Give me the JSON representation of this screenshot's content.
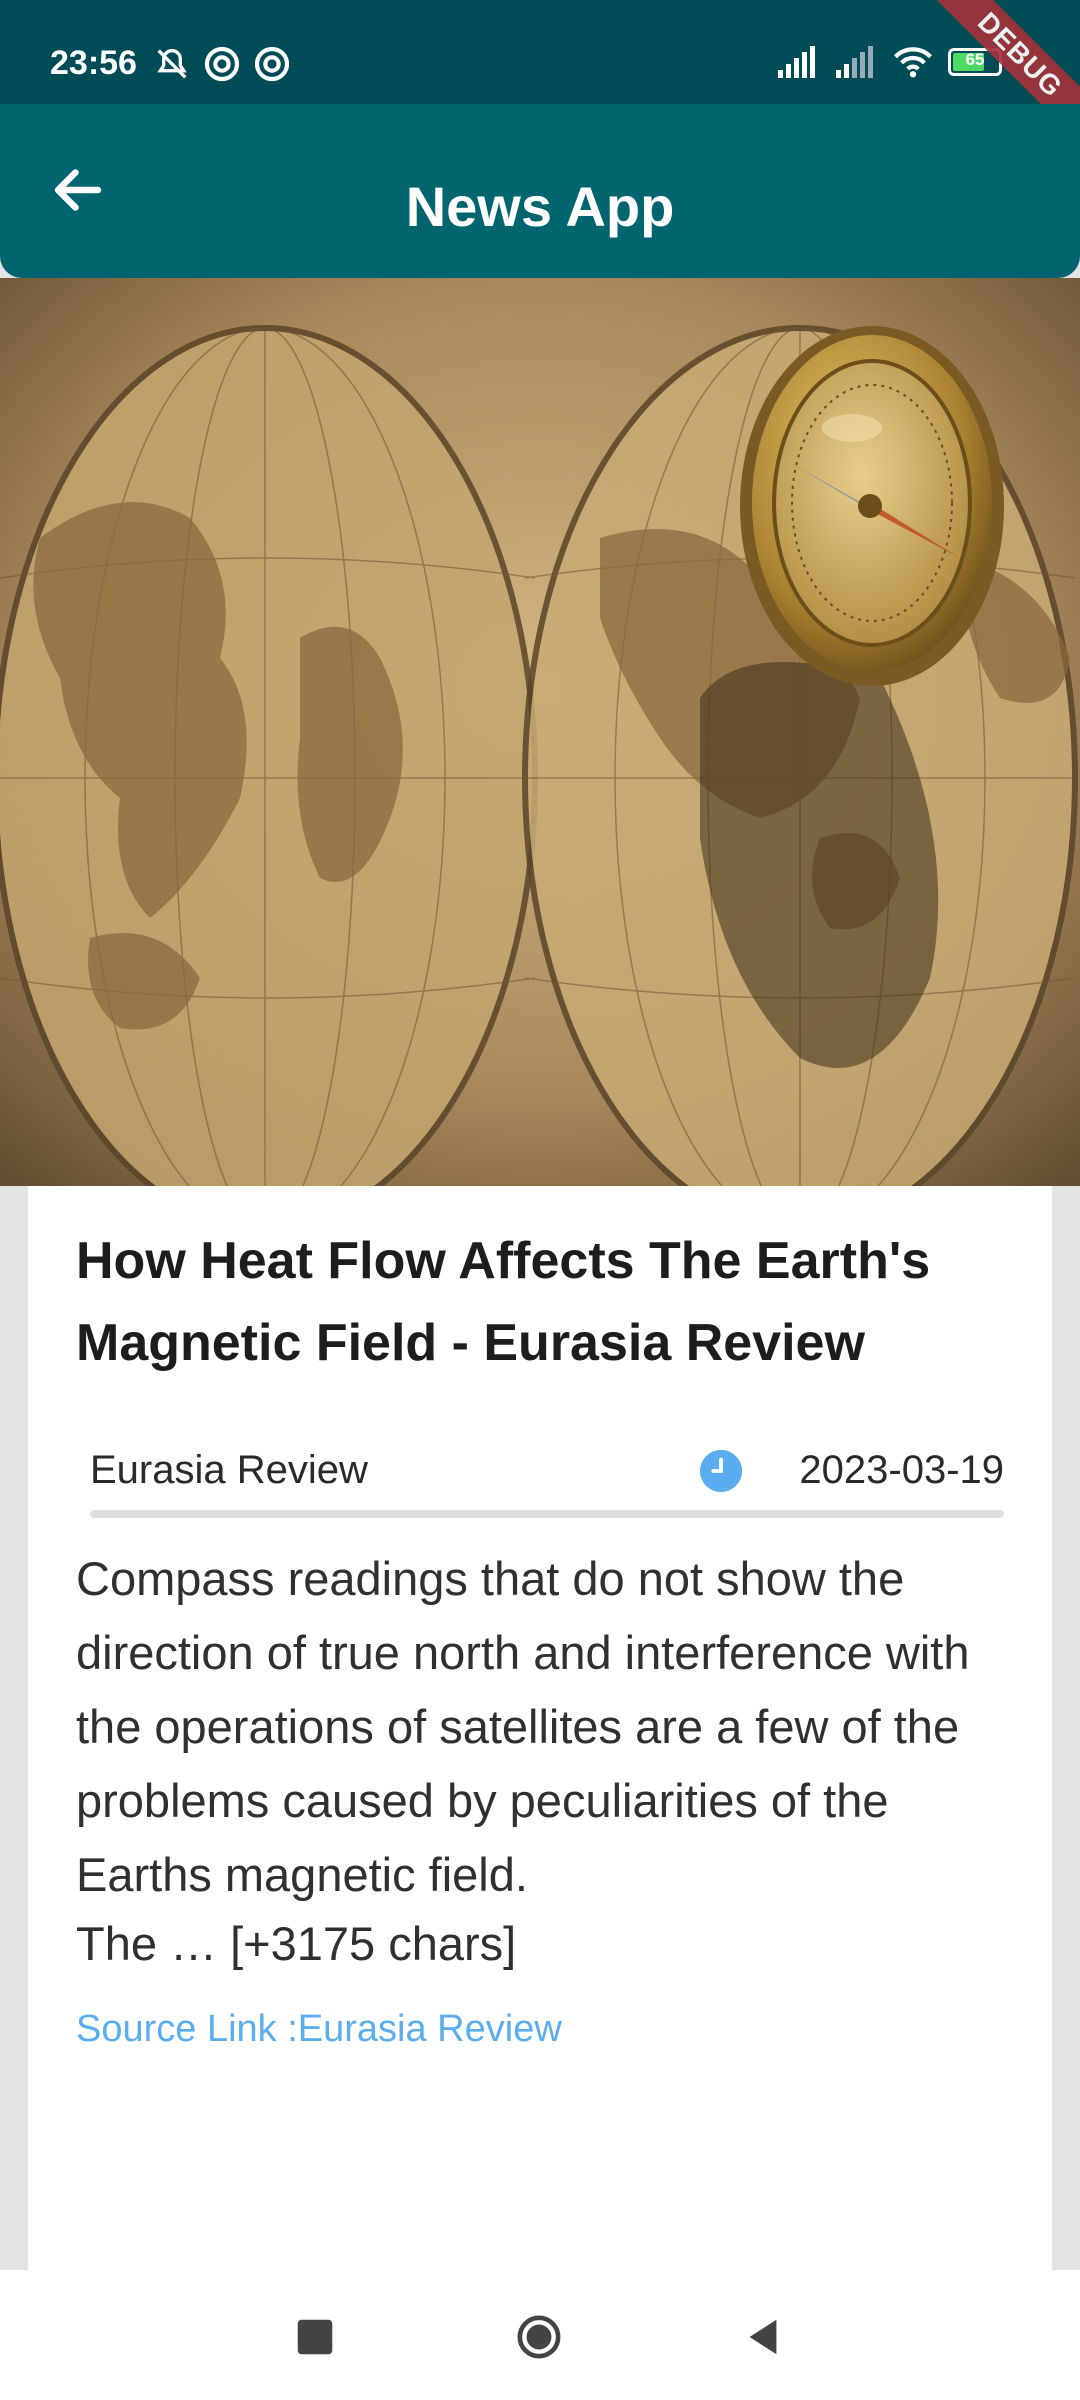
{
  "status_bar": {
    "time": "23:56",
    "battery": "65",
    "icons": [
      "mute-icon",
      "data-saver-icon",
      "data-saver-icon",
      "signal-icon",
      "signal-icon",
      "wifi-icon",
      "battery-icon"
    ]
  },
  "debug_banner": "DEBUG",
  "app_bar": {
    "title": "News App",
    "back_icon": "arrow-back-icon"
  },
  "article": {
    "title": "How Heat Flow Affects The Earth's Magnetic Field - Eurasia Review",
    "source": "Eurasia Review",
    "date": "2023-03-19",
    "description": "Compass readings that do not show the direction of true north and interference with the operations of satellites are a few of the problems caused by peculiarities of the Earths magnetic field.",
    "content_tail": "The … [+3175 chars]",
    "source_link": "Source Link :Eurasia Review"
  },
  "colors": {
    "status_bar": "#004c56",
    "app_bar": "#00656f",
    "link": "#5aaef0",
    "clock": "#5aaef0"
  },
  "nav": [
    "recents-icon",
    "home-icon",
    "back-icon"
  ]
}
